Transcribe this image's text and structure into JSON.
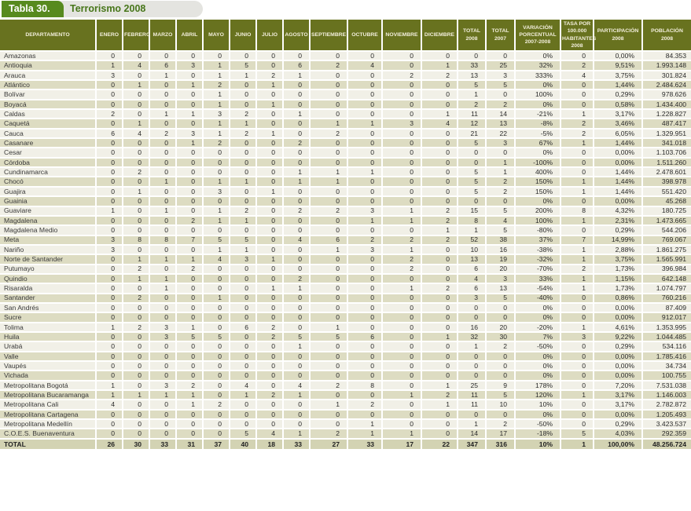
{
  "title": {
    "tab": "Tabla 30.",
    "heading": "Terrorismo 2008"
  },
  "colors": {
    "title_tab_green": "#578a1e",
    "heading_green": "#47761a",
    "header_olive": "#68721f",
    "row_light": "#f1f0e7",
    "row_dark": "#dddcc2",
    "total_row": "#d3d3b3"
  },
  "table": {
    "columns": [
      "DEPARTAMENTO",
      "ENERO",
      "FEBRERO",
      "MARZO",
      "ABRIL",
      "MAYO",
      "JUNIO",
      "JULIO",
      "AGOSTO",
      "SEPTIEMBRE",
      "OCTUBRE",
      "NOVIEMBRE",
      "DICIEMBRE",
      "TOTAL\n2008",
      "TOTAL\n2007",
      "VARIACIÓN\nPORCENTUAL\n2007-2008",
      "TASA POR\n100.000\nHABITANTES\n2008",
      "PARTICIPACIÓN\n2008",
      "POBLACIÓN\n2008"
    ],
    "rows": [
      [
        "Amazonas",
        0,
        0,
        0,
        0,
        0,
        0,
        0,
        0,
        0,
        0,
        0,
        0,
        0,
        0,
        "0%",
        0,
        "0,00%",
        "84.353"
      ],
      [
        "Antioquia",
        1,
        4,
        6,
        3,
        1,
        5,
        0,
        6,
        2,
        4,
        0,
        1,
        33,
        25,
        "32%",
        2,
        "9,51%",
        "1.993.148"
      ],
      [
        "Arauca",
        3,
        0,
        1,
        0,
        1,
        1,
        2,
        1,
        0,
        0,
        2,
        2,
        13,
        3,
        "333%",
        4,
        "3,75%",
        "301.824"
      ],
      [
        "Atlántico",
        0,
        1,
        0,
        1,
        2,
        0,
        1,
        0,
        0,
        0,
        0,
        0,
        5,
        5,
        "0%",
        0,
        "1,44%",
        "2.484.624"
      ],
      [
        "Bolívar",
        0,
        0,
        0,
        0,
        1,
        0,
        0,
        0,
        0,
        0,
        0,
        0,
        1,
        0,
        "100%",
        0,
        "0,29%",
        "978.626"
      ],
      [
        "Boyacá",
        0,
        0,
        0,
        0,
        1,
        0,
        1,
        0,
        0,
        0,
        0,
        0,
        2,
        2,
        "0%",
        0,
        "0,58%",
        "1.434.400"
      ],
      [
        "Caldas",
        2,
        0,
        1,
        1,
        3,
        2,
        0,
        1,
        0,
        0,
        0,
        1,
        11,
        14,
        "-21%",
        1,
        "3,17%",
        "1.228.827"
      ],
      [
        "Caquetá",
        0,
        1,
        0,
        0,
        1,
        1,
        0,
        0,
        1,
        1,
        3,
        4,
        12,
        13,
        "-8%",
        2,
        "3,46%",
        "487.417"
      ],
      [
        "Cauca",
        6,
        4,
        2,
        3,
        1,
        2,
        1,
        0,
        2,
        0,
        0,
        0,
        21,
        22,
        "-5%",
        2,
        "6,05%",
        "1.329.951"
      ],
      [
        "Casanare",
        0,
        0,
        0,
        1,
        2,
        0,
        0,
        2,
        0,
        0,
        0,
        0,
        5,
        3,
        "67%",
        1,
        "1,44%",
        "341.018"
      ],
      [
        "Cesar",
        0,
        0,
        0,
        0,
        0,
        0,
        0,
        0,
        0,
        0,
        0,
        0,
        0,
        0,
        "0%",
        0,
        "0,00%",
        "1.103.706"
      ],
      [
        "Córdoba",
        0,
        0,
        0,
        0,
        0,
        0,
        0,
        0,
        0,
        0,
        0,
        0,
        0,
        1,
        "-100%",
        0,
        "0,00%",
        "1.511.260"
      ],
      [
        "Cundinamarca",
        0,
        2,
        0,
        0,
        0,
        0,
        0,
        1,
        1,
        1,
        0,
        0,
        5,
        1,
        "400%",
        0,
        "1,44%",
        "2.478.601"
      ],
      [
        "Chocó",
        0,
        0,
        1,
        0,
        1,
        1,
        0,
        1,
        1,
        0,
        0,
        0,
        5,
        2,
        "150%",
        1,
        "1,44%",
        "398.978"
      ],
      [
        "Guajira",
        0,
        1,
        0,
        0,
        3,
        0,
        1,
        0,
        0,
        0,
        0,
        0,
        5,
        2,
        "150%",
        1,
        "1,44%",
        "551.420"
      ],
      [
        "Guainia",
        0,
        0,
        0,
        0,
        0,
        0,
        0,
        0,
        0,
        0,
        0,
        0,
        0,
        0,
        "0%",
        0,
        "0,00%",
        "45.268"
      ],
      [
        "Guaviare",
        1,
        0,
        1,
        0,
        1,
        2,
        0,
        2,
        2,
        3,
        1,
        2,
        15,
        5,
        "200%",
        8,
        "4,32%",
        "180.725"
      ],
      [
        "Magdalena",
        0,
        0,
        0,
        2,
        1,
        1,
        0,
        0,
        0,
        1,
        1,
        2,
        8,
        4,
        "100%",
        1,
        "2,31%",
        "1.473.665"
      ],
      [
        "Magdalena Medio",
        0,
        0,
        0,
        0,
        0,
        0,
        0,
        0,
        0,
        0,
        0,
        1,
        1,
        5,
        "-80%",
        0,
        "0,29%",
        "544.206"
      ],
      [
        "Meta",
        3,
        8,
        8,
        7,
        5,
        5,
        0,
        4,
        6,
        2,
        2,
        2,
        52,
        38,
        "37%",
        7,
        "14,99%",
        "769.067"
      ],
      [
        "Nariño",
        3,
        0,
        0,
        0,
        1,
        1,
        0,
        0,
        1,
        3,
        1,
        0,
        10,
        16,
        "-38%",
        1,
        "2,88%",
        "1.861.275"
      ],
      [
        "Norte de Santander",
        0,
        1,
        1,
        1,
        4,
        3,
        1,
        0,
        0,
        0,
        2,
        0,
        13,
        19,
        "-32%",
        1,
        "3,75%",
        "1.565.991"
      ],
      [
        "Putumayo",
        0,
        2,
        0,
        2,
        0,
        0,
        0,
        0,
        0,
        0,
        2,
        0,
        6,
        20,
        "-70%",
        2,
        "1,73%",
        "396.984"
      ],
      [
        "Quindio",
        0,
        1,
        1,
        0,
        0,
        0,
        0,
        2,
        0,
        0,
        0,
        0,
        4,
        3,
        "33%",
        1,
        "1,15%",
        "642.148"
      ],
      [
        "Risaralda",
        0,
        0,
        1,
        0,
        0,
        0,
        1,
        1,
        0,
        0,
        1,
        2,
        6,
        13,
        "-54%",
        1,
        "1,73%",
        "1.074.797"
      ],
      [
        "Santander",
        0,
        2,
        0,
        0,
        1,
        0,
        0,
        0,
        0,
        0,
        0,
        0,
        3,
        5,
        "-40%",
        0,
        "0,86%",
        "760.216"
      ],
      [
        "San Andrés",
        0,
        0,
        0,
        0,
        0,
        0,
        0,
        0,
        0,
        0,
        0,
        0,
        0,
        0,
        "0%",
        0,
        "0,00%",
        "87.409"
      ],
      [
        "Sucre",
        0,
        0,
        0,
        0,
        0,
        0,
        0,
        0,
        0,
        0,
        0,
        0,
        0,
        0,
        "0%",
        0,
        "0,00%",
        "912.017"
      ],
      [
        "Tolima",
        1,
        2,
        3,
        1,
        0,
        6,
        2,
        0,
        1,
        0,
        0,
        0,
        16,
        20,
        "-20%",
        1,
        "4,61%",
        "1.353.995"
      ],
      [
        "Huila",
        0,
        0,
        3,
        5,
        5,
        0,
        2,
        5,
        5,
        6,
        0,
        1,
        32,
        30,
        "7%",
        3,
        "9,22%",
        "1.044.485"
      ],
      [
        "Urabá",
        0,
        0,
        0,
        0,
        0,
        0,
        0,
        1,
        0,
        0,
        0,
        0,
        1,
        2,
        "-50%",
        0,
        "0,29%",
        "534.116"
      ],
      [
        "Valle",
        0,
        0,
        0,
        0,
        0,
        0,
        0,
        0,
        0,
        0,
        0,
        0,
        0,
        0,
        "0%",
        0,
        "0,00%",
        "1.785.416"
      ],
      [
        "Vaupés",
        0,
        0,
        0,
        0,
        0,
        0,
        0,
        0,
        0,
        0,
        0,
        0,
        0,
        0,
        "0%",
        0,
        "0,00%",
        "34.734"
      ],
      [
        "Vichada",
        0,
        0,
        0,
        0,
        0,
        0,
        0,
        0,
        0,
        0,
        0,
        0,
        0,
        0,
        "0%",
        0,
        "0,00%",
        "100.755"
      ],
      [
        "Metropolitana Bogotá",
        1,
        0,
        3,
        2,
        0,
        4,
        0,
        4,
        2,
        8,
        0,
        1,
        25,
        9,
        "178%",
        0,
        "7,20%",
        "7.531.038"
      ],
      [
        "Metropolitana Bucaramanga",
        1,
        1,
        1,
        1,
        0,
        1,
        2,
        1,
        0,
        0,
        1,
        2,
        11,
        5,
        "120%",
        1,
        "3,17%",
        "1.146.003"
      ],
      [
        "Metropolitana Cali",
        4,
        0,
        0,
        1,
        2,
        0,
        0,
        0,
        1,
        2,
        0,
        1,
        11,
        10,
        "10%",
        0,
        "3,17%",
        "2.782.872"
      ],
      [
        "Metropolitana Cartagena",
        0,
        0,
        0,
        0,
        0,
        0,
        0,
        0,
        0,
        0,
        0,
        0,
        0,
        0,
        "0%",
        0,
        "0,00%",
        "1.205.493"
      ],
      [
        "Metropolitana Medellín",
        0,
        0,
        0,
        0,
        0,
        0,
        0,
        0,
        0,
        1,
        0,
        0,
        1,
        2,
        "-50%",
        0,
        "0,29%",
        "3.423.537"
      ],
      [
        "C.O.E.S. Buenaventura",
        0,
        0,
        0,
        0,
        0,
        5,
        4,
        1,
        2,
        1,
        1,
        0,
        14,
        17,
        "-18%",
        5,
        "4,03%",
        "292.359"
      ]
    ],
    "total_row": [
      "TOTAL",
      26,
      30,
      33,
      31,
      37,
      40,
      18,
      33,
      27,
      33,
      17,
      22,
      347,
      316,
      "10%",
      1,
      "100,00%",
      "48.256.724"
    ]
  }
}
